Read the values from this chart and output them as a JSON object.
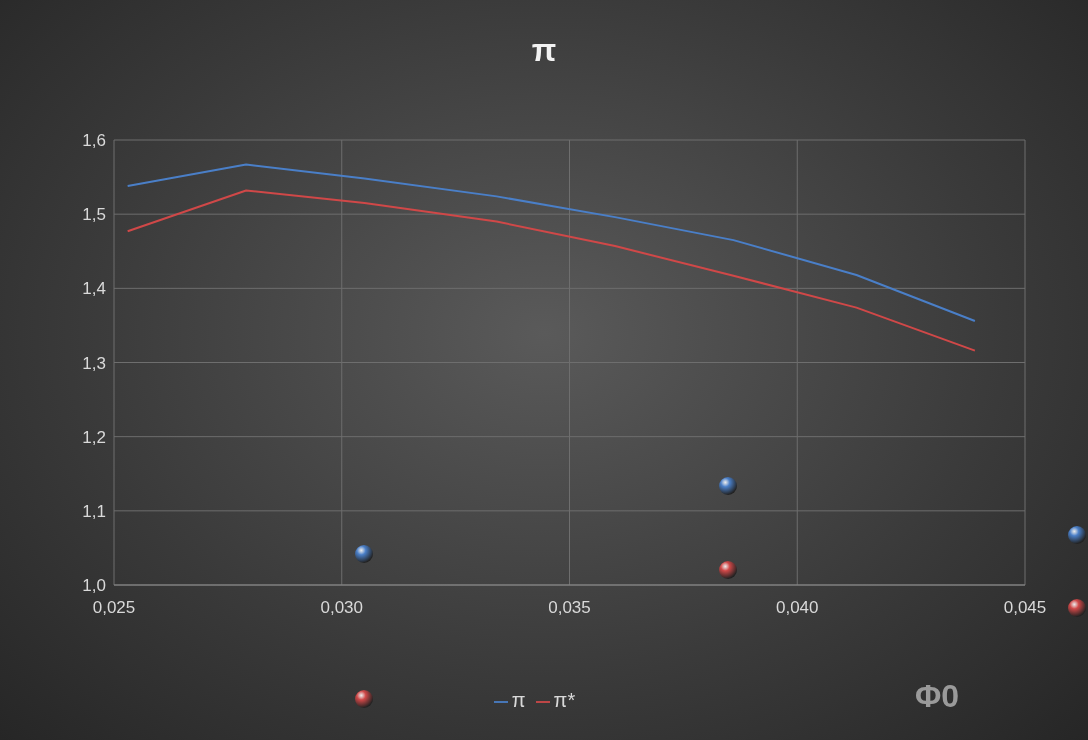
{
  "chart_data": {
    "type": "line",
    "title": "π",
    "xlabel": "Φ0",
    "xlim": [
      0.025,
      0.045
    ],
    "xticks": [
      {
        "value": 0.025,
        "label": "0,025"
      },
      {
        "value": 0.03,
        "label": "0,030"
      },
      {
        "value": 0.035,
        "label": "0,035"
      },
      {
        "value": 0.04,
        "label": "0,040"
      },
      {
        "value": 0.045,
        "label": "0,045"
      }
    ],
    "ylim": [
      1.0,
      1.6
    ],
    "yticks": [
      {
        "value": 1.0,
        "label": "1,0"
      },
      {
        "value": 1.1,
        "label": "1,1"
      },
      {
        "value": 1.2,
        "label": "1,2"
      },
      {
        "value": 1.3,
        "label": "1,3"
      },
      {
        "value": 1.4,
        "label": "1,4"
      },
      {
        "value": 1.5,
        "label": "1,5"
      },
      {
        "value": 1.6,
        "label": "1,6"
      }
    ],
    "x": [
      0.0253,
      0.0279,
      0.0305,
      0.0334,
      0.036,
      0.0386,
      0.0413,
      0.0439
    ],
    "series": [
      {
        "name": "π",
        "color": "#4a7fc8",
        "values": [
          1.538,
          1.567,
          1.548,
          1.524,
          1.496,
          1.465,
          1.418,
          1.356
        ]
      },
      {
        "name": "π*",
        "color": "#d04848",
        "values": [
          1.477,
          1.532,
          1.515,
          1.49,
          1.457,
          1.417,
          1.374,
          1.316
        ]
      }
    ],
    "grid": true,
    "legend": "bottom",
    "marker": "none",
    "line_style": "solid"
  }
}
